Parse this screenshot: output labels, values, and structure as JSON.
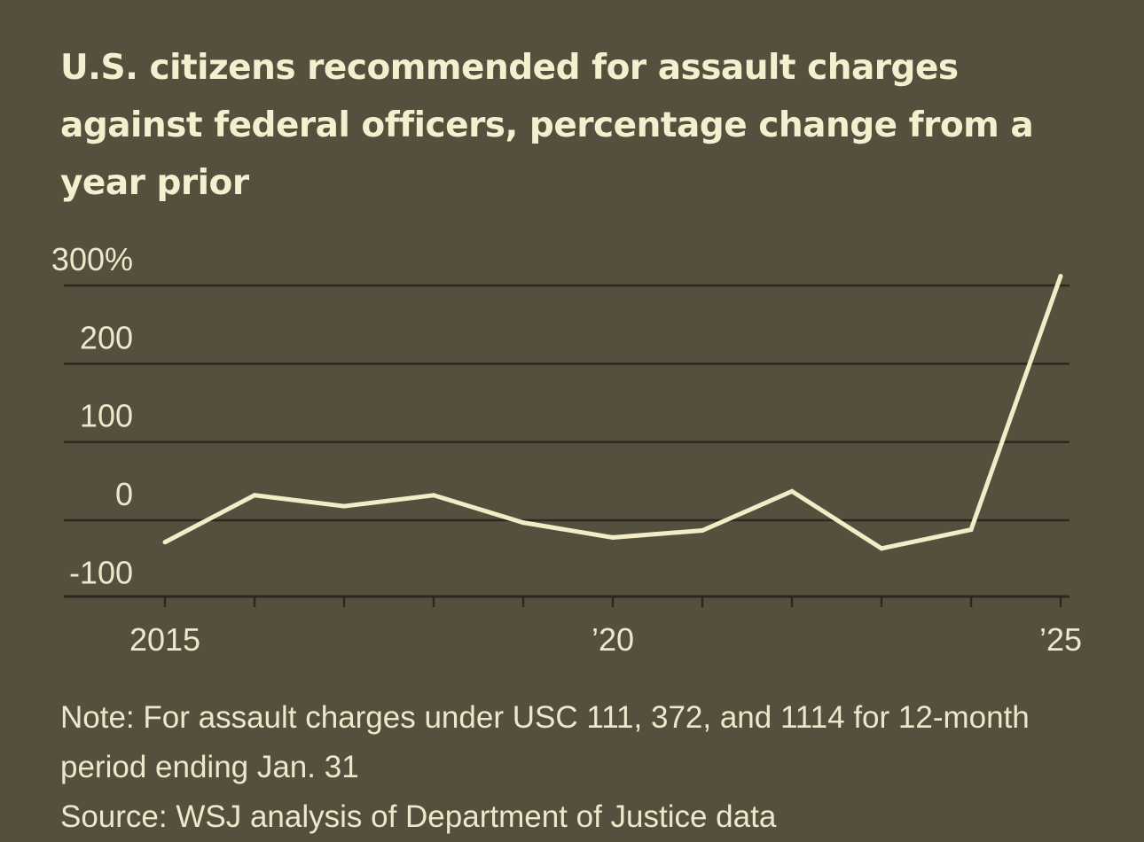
{
  "chart_data": {
    "type": "line",
    "title": "U.S. citizens recommended for assault charges against federal officers, percentage change from a year prior",
    "xlabel": "",
    "ylabel": "",
    "x": [
      2015,
      2016,
      2017,
      2018,
      2019,
      2020,
      2021,
      2022,
      2023,
      2024,
      2025
    ],
    "series": [
      {
        "values": [
          -28,
          32,
          18,
          32,
          -3,
          -22,
          -13,
          37,
          -36,
          -12,
          312
        ]
      }
    ],
    "ylim": [
      -100,
      300
    ],
    "yticks": [
      300,
      200,
      100,
      0,
      -100
    ],
    "ytick_labels": [
      "300%",
      "200",
      "100",
      "0",
      "-100"
    ],
    "xlim": [
      2015,
      2025
    ],
    "xticks": [
      2015,
      2016,
      2017,
      2018,
      2019,
      2020,
      2021,
      2022,
      2023,
      2024,
      2025
    ],
    "xtick_labels": [
      {
        "x": 2015,
        "label": "2015"
      },
      {
        "x": 2020,
        "label": "’20"
      },
      {
        "x": 2025,
        "label": "’25"
      }
    ],
    "grid": true,
    "legend": "none",
    "colors": {
      "background": "#554f3d",
      "line": "#f3ecc6",
      "grid": "#2c281f",
      "text": "#ede7cb"
    }
  },
  "footer": {
    "note": "Note: For assault charges under USC 111, 372, and 1114 for 12-month period ending Jan. 31",
    "source": "Source: WSJ analysis of Department of Justice data"
  }
}
